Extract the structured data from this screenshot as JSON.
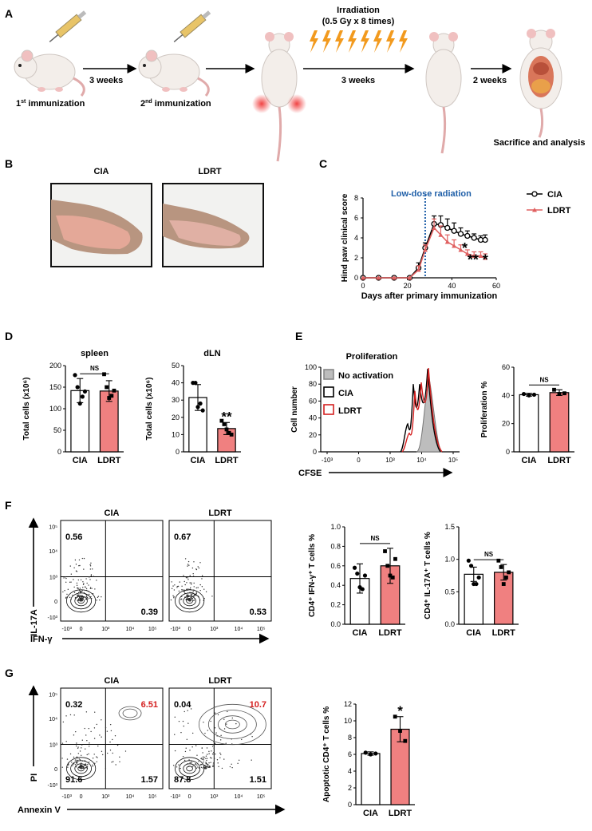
{
  "panels": {
    "A": {
      "letter": "A",
      "step1": "1st immunization",
      "step1_sup": "st",
      "step1_base": "1",
      "step1_rest": " immunization",
      "step2_base": "2",
      "step2_sup": "nd",
      "step2_rest": " immunization",
      "interval1": "3 weeks",
      "irradiation_title": "Irradiation",
      "irradiation_dose": "(0.5 Gy x 8 times)",
      "interval2": "3 weeks",
      "interval3": "2 weeks",
      "end_label": "Sacrifice and analysis"
    },
    "B": {
      "letter": "B",
      "photo1": "CIA",
      "photo2": "LDRT"
    },
    "C": {
      "letter": "C",
      "annotation": "Low-dose radiation",
      "sig": "*",
      "sig2": "**",
      "sig3": "*"
    },
    "D": {
      "letter": "D"
    },
    "E": {
      "letter": "E",
      "hist_title": "Proliferation",
      "legend": [
        "No activation",
        "CIA",
        "LDRT"
      ]
    },
    "F": {
      "letter": "F",
      "left_title": "CIA",
      "right_title": "LDRT",
      "cia_q1": "0.56",
      "cia_q4": "0.39",
      "ldrt_q1": "0.67",
      "ldrt_q4": "0.53",
      "yaxis": "IL-17A",
      "xaxis": "IFN-γ"
    },
    "G": {
      "letter": "G",
      "left_title": "CIA",
      "right_title": "LDRT",
      "cia_q1": "0.32",
      "cia_q2": "6.51",
      "cia_q3": "91.6",
      "cia_q4": "1.57",
      "ldrt_q1": "0.04",
      "ldrt_q2": "10.7",
      "ldrt_q3": "87.8",
      "ldrt_q4": "1.51",
      "yaxis": "PI",
      "xaxis": "Annexin V"
    },
    "flow_ticks": {
      "y": [
        "10⁵",
        "10⁴",
        "10³",
        "0",
        "-10³"
      ],
      "x": [
        "-10³",
        "0",
        "10³",
        "10⁴",
        "10⁵"
      ]
    },
    "ns": "NS"
  },
  "colors": {
    "ldrt": "#f08080",
    "ldrt_line": "#e06060",
    "cia": "#000000",
    "dotted": "#1f5fa8",
    "gray": "#bdbdbd",
    "red": "#d42020"
  },
  "chart_data": [
    {
      "id": "C",
      "type": "line",
      "xlabel": "Days after primary immunization",
      "ylabel": "Hind paw clinical score",
      "xlim": [
        0,
        60
      ],
      "ylim": [
        0,
        8
      ],
      "xticks": [
        0,
        20,
        40,
        60
      ],
      "yticks": [
        0,
        2,
        4,
        6,
        8
      ],
      "series": [
        {
          "name": "CIA",
          "x": [
            0,
            7,
            14,
            21,
            25,
            28,
            32,
            35,
            38,
            41,
            44,
            47,
            50,
            53,
            55
          ],
          "y": [
            0,
            0,
            0,
            0,
            1.0,
            3.0,
            5.4,
            5.3,
            5.0,
            4.7,
            4.4,
            4.2,
            4.0,
            3.8,
            3.8
          ],
          "err": [
            0,
            0,
            0,
            0,
            0.5,
            0.5,
            0.8,
            0.9,
            0.9,
            0.8,
            0.6,
            0.5,
            0.4,
            0.4,
            0.5
          ]
        },
        {
          "name": "LDRT",
          "x": [
            0,
            7,
            14,
            21,
            25,
            28,
            32,
            35,
            38,
            41,
            44,
            47,
            50,
            53,
            55
          ],
          "y": [
            0,
            0,
            0,
            0,
            0.8,
            2.8,
            5.0,
            4.3,
            3.6,
            3.2,
            2.8,
            2.4,
            2.2,
            2.2,
            2.0
          ],
          "err": [
            0,
            0,
            0,
            0,
            0.4,
            0.5,
            0.9,
            0.9,
            0.7,
            0.6,
            0.5,
            0.4,
            0.4,
            0.4,
            0.4
          ]
        }
      ],
      "legend": [
        "CIA",
        "LDRT"
      ]
    },
    {
      "id": "D1",
      "type": "bar",
      "title": "spleen",
      "ylabel": "Total cells (x10⁶)",
      "categories": [
        "CIA",
        "LDRT"
      ],
      "values": [
        142,
        141
      ],
      "err": [
        28,
        24
      ],
      "ylim": [
        0,
        200
      ],
      "yticks": [
        0,
        50,
        100,
        150,
        200
      ],
      "points": [
        [
          178,
          150,
          112,
          128,
          140
        ],
        [
          180,
          150,
          125,
          130,
          142
        ]
      ],
      "sig": "NS"
    },
    {
      "id": "D2",
      "type": "bar",
      "title": "dLN",
      "ylabel": "Total cells (x10⁶)",
      "categories": [
        "CIA",
        "LDRT"
      ],
      "values": [
        31.5,
        13.5
      ],
      "err": [
        7.5,
        3.5
      ],
      "ylim": [
        0,
        50
      ],
      "yticks": [
        0,
        10,
        20,
        30,
        40,
        50
      ],
      "points": [
        [
          40,
          40,
          26,
          28,
          24
        ],
        [
          18,
          16,
          13,
          11,
          10
        ]
      ],
      "sig": "**"
    },
    {
      "id": "E2",
      "type": "bar",
      "ylabel": "Proliferation %",
      "categories": [
        "CIA",
        "LDRT"
      ],
      "values": [
        40.5,
        42
      ],
      "err": [
        1,
        2
      ],
      "ylim": [
        0,
        60
      ],
      "yticks": [
        0,
        20,
        40,
        60
      ],
      "points": [
        [
          41,
          40,
          40.5
        ],
        [
          44,
          41,
          41.5
        ]
      ],
      "sig": "NS"
    },
    {
      "id": "F2",
      "type": "bar",
      "ylabel": "CD4⁺ IFN-γ⁺ T cells %",
      "categories": [
        "CIA",
        "LDRT"
      ],
      "values": [
        0.47,
        0.6
      ],
      "err": [
        0.15,
        0.18
      ],
      "ylim": [
        0,
        1.0
      ],
      "yticks": [
        0.0,
        0.2,
        0.4,
        0.6,
        0.8,
        1.0
      ],
      "points": [
        [
          0.58,
          0.52,
          0.38,
          0.36,
          0.5
        ],
        [
          0.75,
          0.6,
          0.5,
          0.48,
          0.67
        ]
      ],
      "sig": "NS"
    },
    {
      "id": "F3",
      "type": "bar",
      "ylabel": "CD4⁺ IL-17A⁺ T cells %",
      "categories": [
        "CIA",
        "LDRT"
      ],
      "values": [
        0.77,
        0.8
      ],
      "err": [
        0.11,
        0.12
      ],
      "ylim": [
        0,
        1.5
      ],
      "yticks": [
        0.0,
        0.5,
        1.0,
        1.5
      ],
      "points": [
        [
          0.98,
          0.9,
          0.62,
          0.62,
          0.72
        ],
        [
          0.98,
          0.88,
          0.62,
          0.72,
          0.8
        ]
      ],
      "sig": "NS"
    },
    {
      "id": "G2",
      "type": "bar",
      "ylabel": "Apoptotic CD4⁺ T cells %",
      "categories": [
        "CIA",
        "LDRT"
      ],
      "values": [
        6.1,
        9
      ],
      "err": [
        0.2,
        1.5
      ],
      "ylim": [
        0,
        12
      ],
      "yticks": [
        0,
        2,
        4,
        6,
        8,
        10,
        12
      ],
      "points": [
        [
          6.2,
          6.0,
          6.1
        ],
        [
          10.5,
          8.8,
          7.6
        ]
      ],
      "sig": "*"
    },
    {
      "id": "E1",
      "type": "histogram",
      "xlabel": "CFSE",
      "ylabel": "Cell number",
      "ylim": [
        0,
        100
      ],
      "yticks": [
        0,
        20,
        40,
        60,
        80,
        100
      ],
      "xticks": [
        "-10³",
        "0",
        "10³",
        "10⁴",
        "10⁵"
      ]
    }
  ]
}
